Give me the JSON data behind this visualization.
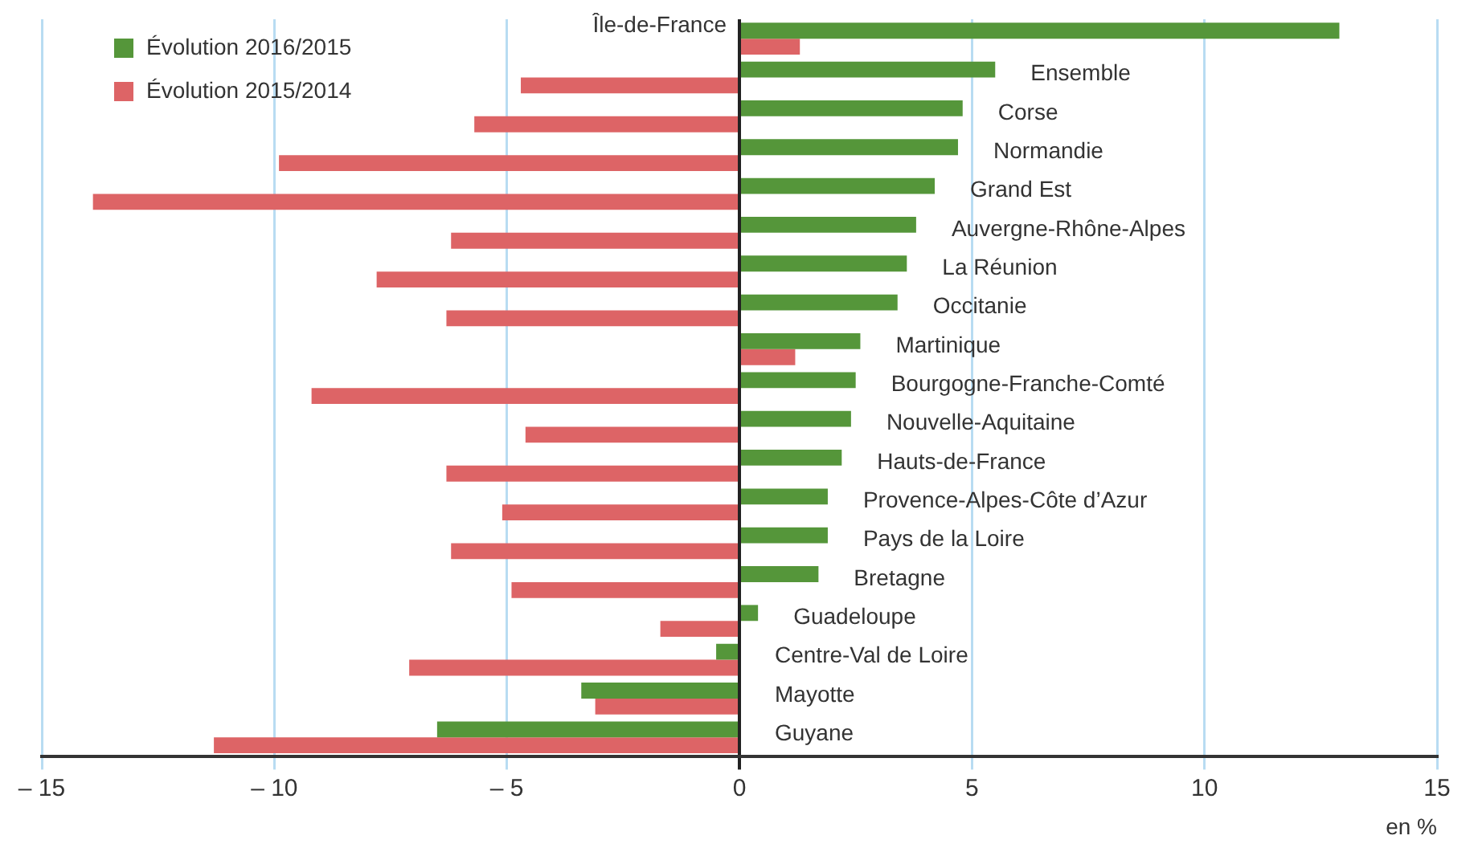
{
  "chart_data": {
    "type": "bar",
    "orientation": "horizontal",
    "xlabel": "en %",
    "categories": [
      "Île-de-France",
      "Ensemble",
      "Corse",
      "Normandie",
      "Grand Est",
      "Auvergne-Rhône-Alpes",
      "La Réunion",
      "Occitanie",
      "Martinique",
      "Bourgogne-Franche-Comté",
      "Nouvelle-Aquitaine",
      "Hauts-de-France",
      "Provence-Alpes-Côte d’Azur",
      "Pays de la Loire",
      "Bretagne",
      "Guadeloupe",
      "Centre-Val de Loire",
      "Mayotte",
      "Guyane"
    ],
    "series": [
      {
        "name": "Évolution 2016/2015",
        "color": "#55963a",
        "values": [
          12.9,
          5.5,
          4.8,
          4.7,
          4.2,
          3.8,
          3.6,
          3.4,
          2.6,
          2.5,
          2.4,
          2.2,
          1.9,
          1.9,
          1.7,
          0.4,
          -0.5,
          -3.4,
          -6.5
        ]
      },
      {
        "name": "Évolution 2015/2014",
        "color": "#dd6466",
        "values": [
          1.3,
          -4.7,
          -5.7,
          -9.9,
          -13.9,
          -6.2,
          -7.8,
          -6.3,
          1.2,
          -9.2,
          -4.6,
          -6.3,
          -5.1,
          -6.2,
          -4.9,
          -1.7,
          -7.1,
          -3.1,
          -11.3
        ]
      }
    ],
    "xlim": [
      -15,
      15
    ],
    "xticks": [
      {
        "value": -15,
        "label": "– 15"
      },
      {
        "value": -10,
        "label": "– 10"
      },
      {
        "value": -5,
        "label": "– 5"
      },
      0,
      5,
      10,
      15
    ],
    "grid": "x",
    "legend": "top left",
    "tick_labels": "x"
  }
}
